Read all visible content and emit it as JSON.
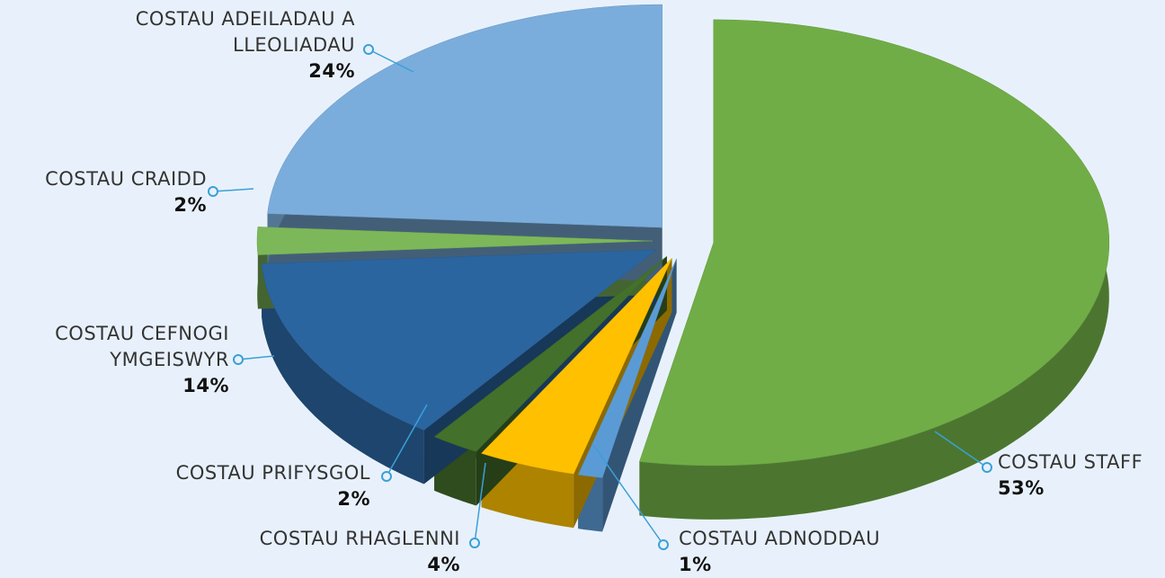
{
  "chart_data": {
    "type": "pie",
    "categories": [
      "COSTAU STAFF",
      "COSTAU ADNODDAU",
      "COSTAU RHAGLENNI",
      "COSTAU PRIFYSGOL",
      "COSTAU CEFNOGI YMGEISWYR",
      "COSTAU CRAIDD",
      "COSTAU ADEILADAU A LLEOLIADAU"
    ],
    "values": [
      53,
      1,
      4,
      2,
      14,
      2,
      24
    ],
    "value_labels": [
      "53%",
      "1%",
      "4%",
      "2%",
      "14%",
      "2%",
      "24%"
    ],
    "colors": [
      "#70ad47",
      "#5b9bd5",
      "#ffc000",
      "#43702a",
      "#2a65a0",
      "#7cb85a",
      "#7aaddb"
    ]
  }
}
